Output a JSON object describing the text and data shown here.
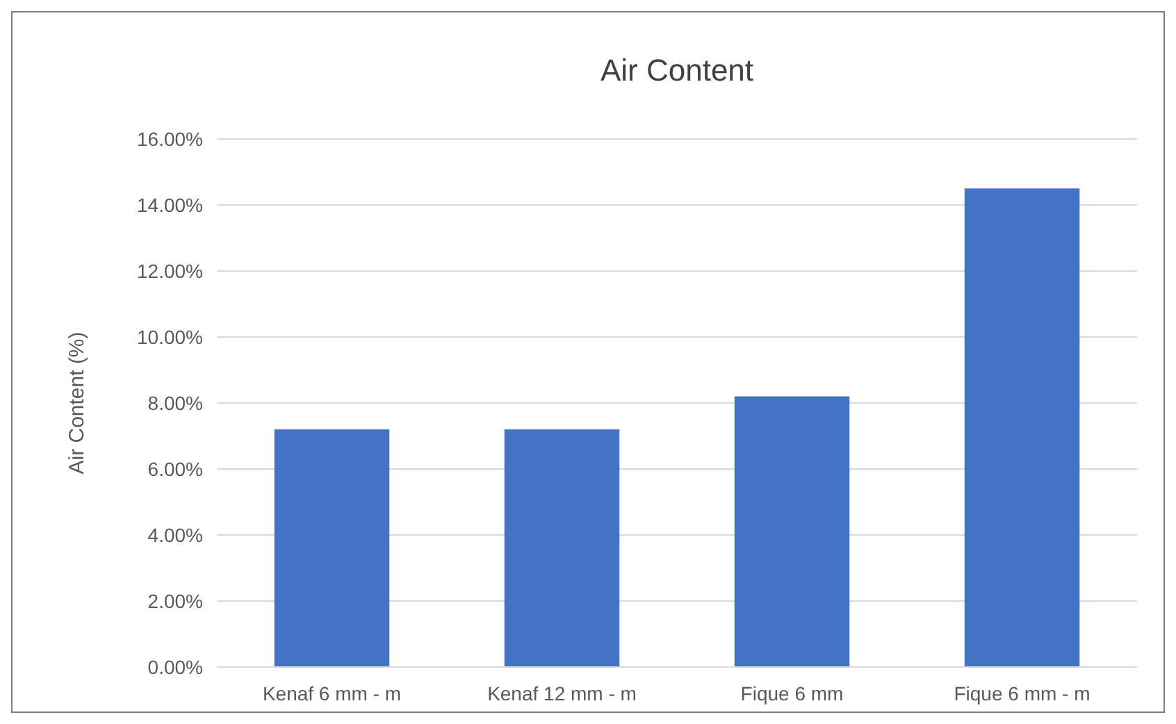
{
  "chart_data": {
    "type": "bar",
    "title": "Air Content",
    "ylabel": "Air Content (%)",
    "categories": [
      "Kenaf 6 mm - m",
      "Kenaf 12 mm - m",
      "Fique 6 mm",
      "Fique 6 mm - m"
    ],
    "values": [
      7.2,
      7.2,
      8.2,
      14.5
    ],
    "color": "#4472c4",
    "ylim": [
      0,
      16
    ],
    "yticks": [
      {
        "value": 0,
        "label": "0.00%"
      },
      {
        "value": 2,
        "label": "2.00%"
      },
      {
        "value": 4,
        "label": "4.00%"
      },
      {
        "value": 6,
        "label": "6.00%"
      },
      {
        "value": 8,
        "label": "8.00%"
      },
      {
        "value": 10,
        "label": "10.00%"
      },
      {
        "value": 12,
        "label": "12.00%"
      },
      {
        "value": 14,
        "label": "14.00%"
      },
      {
        "value": 16,
        "label": "16.00%"
      }
    ],
    "grid": "y"
  }
}
